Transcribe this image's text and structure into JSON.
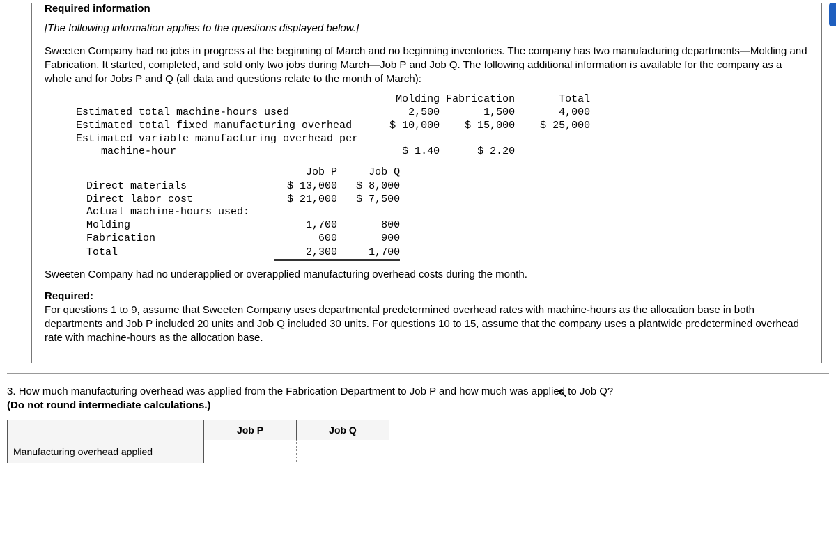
{
  "header": {
    "required_label": "Required information",
    "applies_note": "[The following information applies to the questions displayed below.]"
  },
  "intro_para": "Sweeten Company had no jobs in progress at the beginning of March and no beginning inventories. The company has two manufacturing departments—Molding and Fabrication. It started, completed, and sold only two jobs during March—Job P and Job Q. The following additional information is available for the company as a whole and for Jobs P and Q (all data and questions relate to the month of March):",
  "table1": {
    "col_headers": [
      "Molding",
      "Fabrication",
      "Total"
    ],
    "rows": [
      {
        "label": "Estimated total machine-hours used",
        "molding": "2,500",
        "fabrication": "1,500",
        "total": "4,000"
      },
      {
        "label": "Estimated total fixed manufacturing overhead",
        "molding": "$ 10,000",
        "fabrication": "$ 15,000",
        "total": "$ 25,000"
      },
      {
        "label": "Estimated variable manufacturing overhead per",
        "molding": "",
        "fabrication": "",
        "total": ""
      },
      {
        "label": "    machine-hour",
        "molding": "$ 1.40",
        "fabrication": "$ 2.20",
        "total": ""
      }
    ]
  },
  "table2": {
    "col_headers": [
      "Job P",
      "Job Q"
    ],
    "rows": [
      {
        "label": "Direct materials",
        "p": "$ 13,000",
        "q": "$ 8,000",
        "cls": ""
      },
      {
        "label": "Direct labor cost",
        "p": "$ 21,000",
        "q": "$ 7,500",
        "cls": ""
      },
      {
        "label": "Actual machine-hours used:",
        "p": "",
        "q": "",
        "cls": ""
      },
      {
        "label": "Molding",
        "p": "1,700",
        "q": "800",
        "cls": ""
      },
      {
        "label": "Fabrication",
        "p": "600",
        "q": "900",
        "cls": "top"
      },
      {
        "label": "Total",
        "p": "2,300",
        "q": "1,700",
        "cls": "dbl"
      }
    ]
  },
  "mid_para": "Sweeten Company had no underapplied or overapplied manufacturing overhead costs during the month.",
  "required_block": {
    "heading": "Required:",
    "text": "For questions 1 to 9, assume that Sweeten Company uses departmental predetermined overhead rates with machine-hours as the allocation base in both departments and Job P included 20 units and Job Q included 30 units. For questions 10 to 15, assume that the company uses a plantwide predetermined overhead rate with machine-hours as the allocation base."
  },
  "question": {
    "num": "3. ",
    "text": "How much manufacturing overhead was applied from the Fabrication Department to Job P and how much was applied to Job Q?",
    "note": "(Do not round intermediate calculations.)"
  },
  "answer_table": {
    "col_p": "Job P",
    "col_q": "Job Q",
    "row_label": "Manufacturing overhead applied"
  },
  "style": {
    "bg": "#ffffff",
    "text": "#000000",
    "border": "#777777",
    "cell_bg": "#f5f5f5",
    "font_body": "Arial",
    "font_mono": "Courier New"
  }
}
